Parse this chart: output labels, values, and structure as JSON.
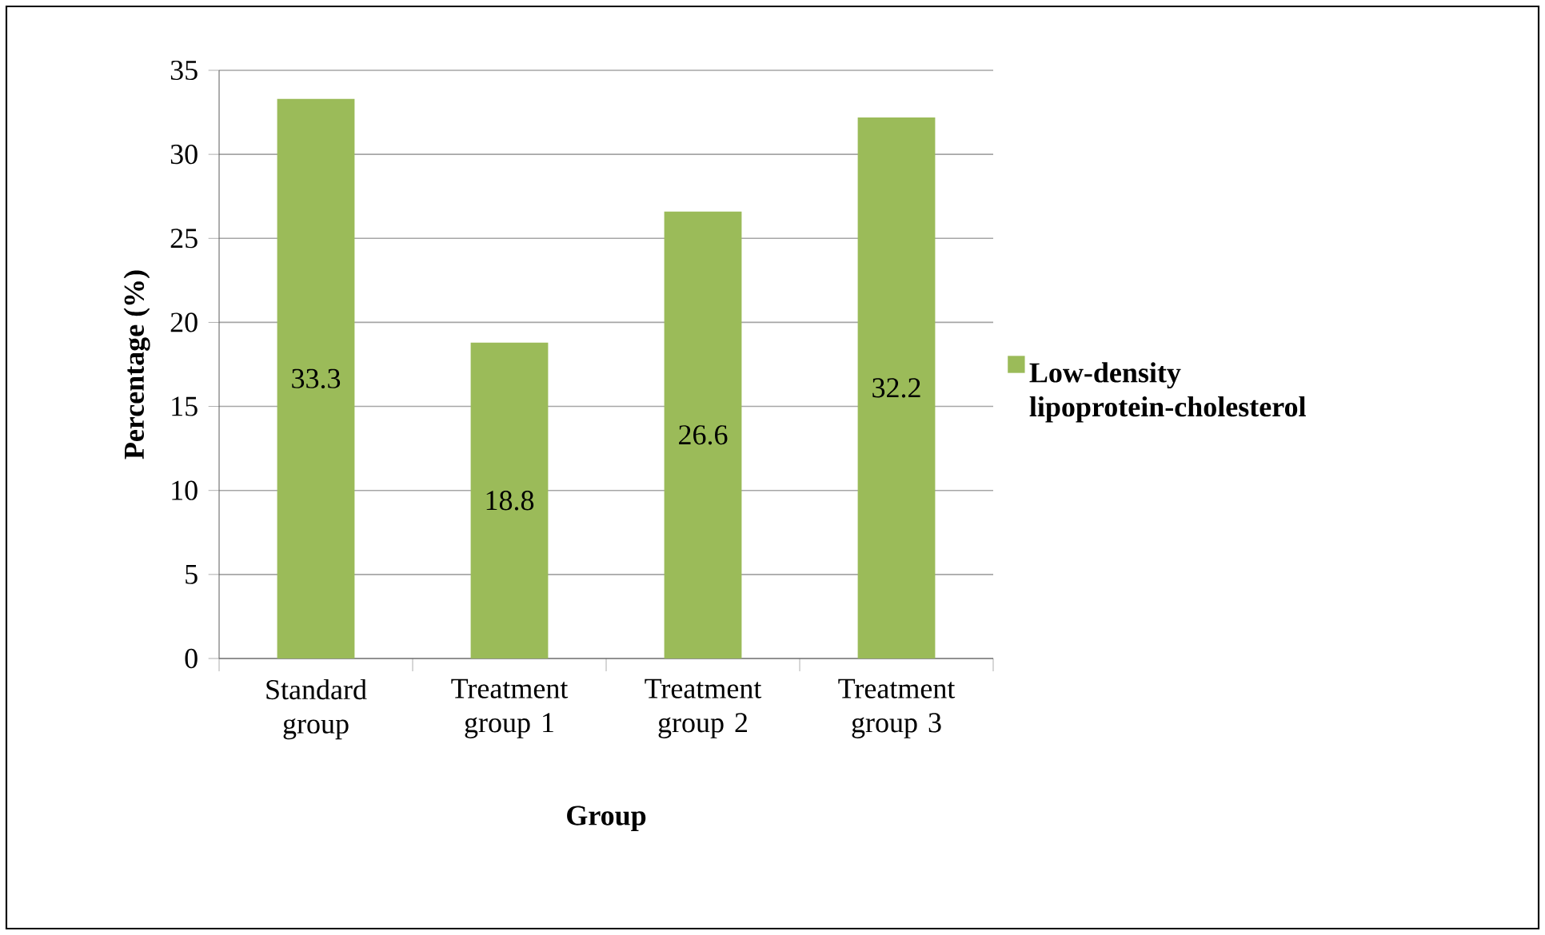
{
  "chart_data": {
    "type": "bar",
    "xlabel": "Group",
    "ylabel": "Percentage (%)",
    "categories": [
      "Standard group",
      "Treatment group 1",
      "Treatment group 2",
      "Treatment group 3"
    ],
    "series": [
      {
        "name": "Low-density lipoprotein-cholesterol",
        "color": "#9bbb59",
        "values": [
          33.3,
          18.8,
          26.6,
          32.2
        ]
      }
    ],
    "ylim": [
      0,
      35
    ],
    "yticks": [
      0,
      5,
      10,
      15,
      20,
      25,
      30,
      35
    ],
    "grid": "y",
    "legend": "right",
    "data_labels": true
  }
}
